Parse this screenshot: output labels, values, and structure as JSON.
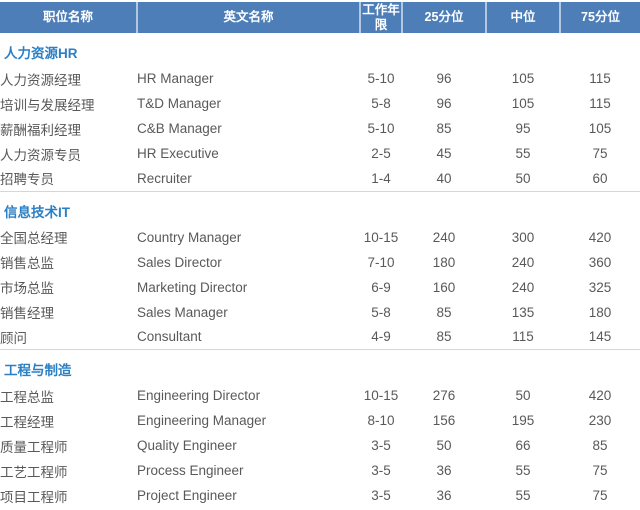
{
  "table": {
    "headers": [
      "职位名称",
      "英文名称",
      "工作年限",
      "25分位",
      "中位",
      "75分位"
    ],
    "sections": [
      {
        "title": "人力资源HR",
        "rows": [
          [
            "人力资源经理",
            "HR Manager",
            "5-10",
            "96",
            "105",
            "115"
          ],
          [
            "培训与发展经理",
            "T&D Manager",
            "5-8",
            "96",
            "105",
            "115"
          ],
          [
            "薪酬福利经理",
            "C&B Manager",
            "5-10",
            "85",
            "95",
            "105"
          ],
          [
            "人力资源专员",
            "HR Executive",
            "2-5",
            "45",
            "55",
            "75"
          ],
          [
            "招聘专员",
            "Recruiter",
            "1-4",
            "40",
            "50",
            "60"
          ]
        ]
      },
      {
        "title": "信息技术IT",
        "rows": [
          [
            "全国总经理",
            "Country Manager",
            "10-15",
            "240",
            "300",
            "420"
          ],
          [
            "销售总监",
            "Sales Director",
            "7-10",
            "180",
            "240",
            "360"
          ],
          [
            "市场总监",
            "Marketing Director",
            "6-9",
            "160",
            "240",
            "325"
          ],
          [
            "销售经理",
            "Sales Manager",
            "5-8",
            "85",
            "135",
            "180"
          ],
          [
            "顾问",
            "Consultant",
            "4-9",
            "85",
            "115",
            "145"
          ]
        ]
      },
      {
        "title": "工程与制造",
        "rows": [
          [
            "工程总监",
            "Engineering Director",
            "10-15",
            "276",
            "50",
            "420"
          ],
          [
            "工程经理",
            "Engineering Manager",
            "8-10",
            "156",
            "195",
            "230"
          ],
          [
            "质量工程师",
            "Quality Engineer",
            "3-5",
            "50",
            "66",
            "85"
          ],
          [
            "工艺工程师",
            "Process Engineer",
            "3-5",
            "36",
            "55",
            "75"
          ],
          [
            "项目工程师",
            "Project Engineer",
            "3-5",
            "36",
            "55",
            "75"
          ]
        ]
      }
    ]
  },
  "colors": {
    "header_bg": "#4d7eb8",
    "header_text": "#ffffff",
    "header_divider": "#b3c8e0",
    "section_title": "#2b7fc4",
    "row_text": "#595959",
    "divider": "#d6d6d6",
    "bottom_rule": "#c9c9c9"
  }
}
